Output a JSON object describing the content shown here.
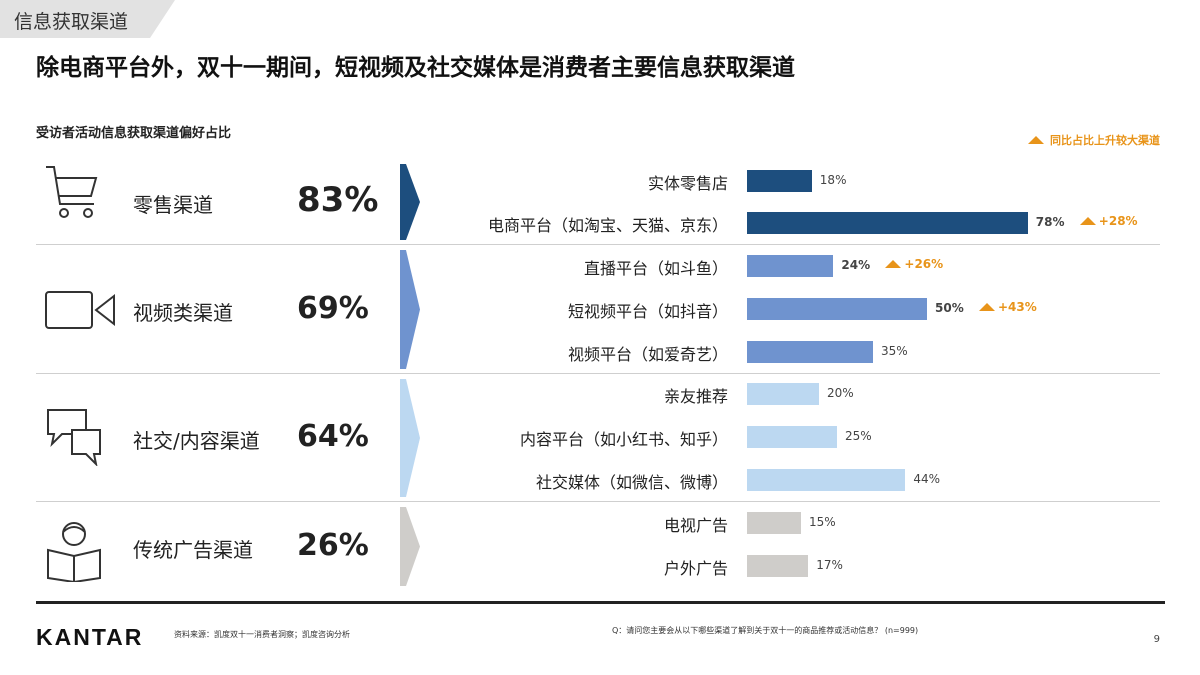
{
  "tag": "信息获取渠道",
  "headline": "除电商平台外，双十一期间，短视频及社交媒体是消费者主要信息获取渠道",
  "subtitle": "受访者活动信息获取渠道偏好占比",
  "legend": "同比占比上升较大渠道",
  "colors": {
    "accent": "#e8941a"
  },
  "chart_data": {
    "type": "bar",
    "orientation": "horizontal",
    "xlim": [
      0,
      100
    ],
    "unit": "%",
    "groups": [
      {
        "name": "零售渠道",
        "value": 83,
        "value_label": "83%",
        "icon": "shopping-cart-icon",
        "color": "#1d4e7e",
        "items": [
          {
            "label": "实体零售店",
            "value": 18,
            "value_label": "18%"
          },
          {
            "label": "电商平台（如淘宝、天猫、京东）",
            "value": 78,
            "value_label": "78%",
            "change": "+28%"
          }
        ]
      },
      {
        "name": "视频类渠道",
        "value": 69,
        "value_label": "69%",
        "icon": "video-camera-icon",
        "color": "#6f93cf",
        "items": [
          {
            "label": "直播平台（如斗鱼）",
            "value": 24,
            "value_label": "24%",
            "change": "+26%"
          },
          {
            "label": "短视频平台（如抖音）",
            "value": 50,
            "value_label": "50%",
            "change": "+43%"
          },
          {
            "label": "视频平台（如爱奇艺）",
            "value": 35,
            "value_label": "35%"
          }
        ]
      },
      {
        "name": "社交/内容渠道",
        "value": 64,
        "value_label": "64%",
        "icon": "chat-bubbles-icon",
        "color": "#bcd8f1",
        "items": [
          {
            "label": "亲友推荐",
            "value": 20,
            "value_label": "20%"
          },
          {
            "label": "内容平台（如小红书、知乎）",
            "value": 25,
            "value_label": "25%"
          },
          {
            "label": "社交媒体（如微信、微博）",
            "value": 44,
            "value_label": "44%"
          }
        ]
      },
      {
        "name": "传统广告渠道",
        "value": 26,
        "value_label": "26%",
        "icon": "newspaper-reader-icon",
        "color": "#cfcdca",
        "items": [
          {
            "label": "电视广告",
            "value": 15,
            "value_label": "15%"
          },
          {
            "label": "户外广告",
            "value": 17,
            "value_label": "17%"
          }
        ]
      }
    ]
  },
  "footer": {
    "logo": "KANTAR",
    "source": "资料来源：凯度双十一消费者洞察；凯度咨询分析",
    "note": "Q：请问您主要会从以下哪些渠道了解到关于双十一的商品推荐或活动信息？ (n=999)",
    "page": "9"
  }
}
